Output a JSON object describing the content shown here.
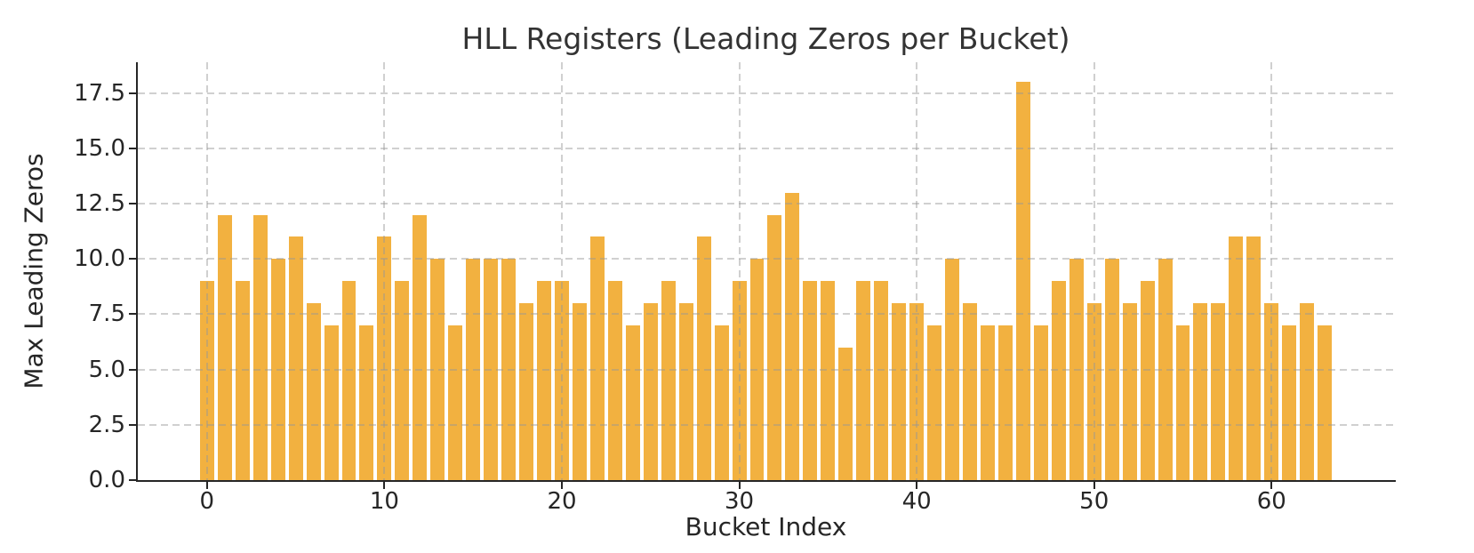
{
  "chart_data": {
    "type": "bar",
    "title": "HLL Registers (Leading Zeros per Bucket)",
    "xlabel": "Bucket Index",
    "ylabel": "Max Leading Zeros",
    "categories": [
      0,
      1,
      2,
      3,
      4,
      5,
      6,
      7,
      8,
      9,
      10,
      11,
      12,
      13,
      14,
      15,
      16,
      17,
      18,
      19,
      20,
      21,
      22,
      23,
      24,
      25,
      26,
      27,
      28,
      29,
      30,
      31,
      32,
      33,
      34,
      35,
      36,
      37,
      38,
      39,
      40,
      41,
      42,
      43,
      44,
      45,
      46,
      47,
      48,
      49,
      50,
      51,
      52,
      53,
      54,
      55,
      56,
      57,
      58,
      59,
      60,
      61,
      62,
      63
    ],
    "values": [
      9,
      12,
      9,
      12,
      10,
      11,
      8,
      7,
      9,
      7,
      11,
      9,
      12,
      10,
      7,
      10,
      10,
      10,
      8,
      9,
      9,
      8,
      11,
      9,
      7,
      8,
      9,
      8,
      11,
      7,
      9,
      10,
      12,
      13,
      9,
      9,
      6,
      9,
      9,
      8,
      8,
      7,
      10,
      8,
      7,
      7,
      18,
      7,
      9,
      10,
      8,
      10,
      8,
      9,
      10,
      7,
      8,
      8,
      11,
      11,
      8,
      7,
      8,
      7
    ],
    "bar_color": "#F2B140",
    "bar_width": 0.8,
    "xlim": [
      -3.9,
      66.9
    ],
    "ylim": [
      0,
      18.9
    ],
    "xticks": [
      0,
      10,
      20,
      30,
      40,
      50,
      60
    ],
    "xtick_labels": [
      "0",
      "10",
      "20",
      "30",
      "40",
      "50",
      "60"
    ],
    "yticks": [
      0,
      2.5,
      5,
      7.5,
      10,
      12.5,
      15,
      17.5
    ],
    "ytick_labels": [
      "0.0",
      "2.5",
      "5.0",
      "7.5",
      "10.0",
      "12.5",
      "15.0",
      "17.5"
    ],
    "grid": true,
    "grid_style": "dashed",
    "grid_color": "#969696",
    "text_color": "#262626",
    "legend_position": "none"
  }
}
